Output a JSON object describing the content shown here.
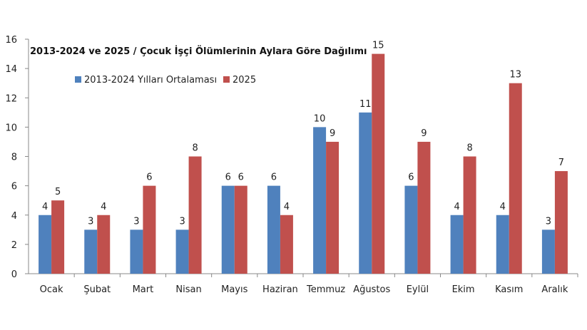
{
  "chart_data": {
    "type": "bar",
    "title": "2013-2024 ve 2025 / Çocuk İşçi Ölümlerinin Aylara Göre Dağılımı",
    "xlabel": "",
    "ylabel": "",
    "ylim": [
      0,
      16
    ],
    "yticks": [
      0,
      2,
      4,
      6,
      8,
      10,
      12,
      14,
      16
    ],
    "grid": false,
    "legend_position": "top-left",
    "categories": [
      "Ocak",
      "Şubat",
      "Mart",
      "Nisan",
      "Mayıs",
      "Haziran",
      "Temmuz",
      "Ağustos",
      "Eylül",
      "Ekim",
      "Kasım",
      "Aralık"
    ],
    "series": [
      {
        "name": "2013-2024 Yılları Ortalaması",
        "color": "#4F81BD",
        "values": [
          4,
          3,
          3,
          3,
          6,
          6,
          10,
          11,
          6,
          4,
          4,
          3
        ]
      },
      {
        "name": "2025",
        "color": "#C0504D",
        "values": [
          5,
          4,
          6,
          8,
          6,
          4,
          9,
          15,
          9,
          8,
          13,
          7
        ]
      }
    ]
  }
}
